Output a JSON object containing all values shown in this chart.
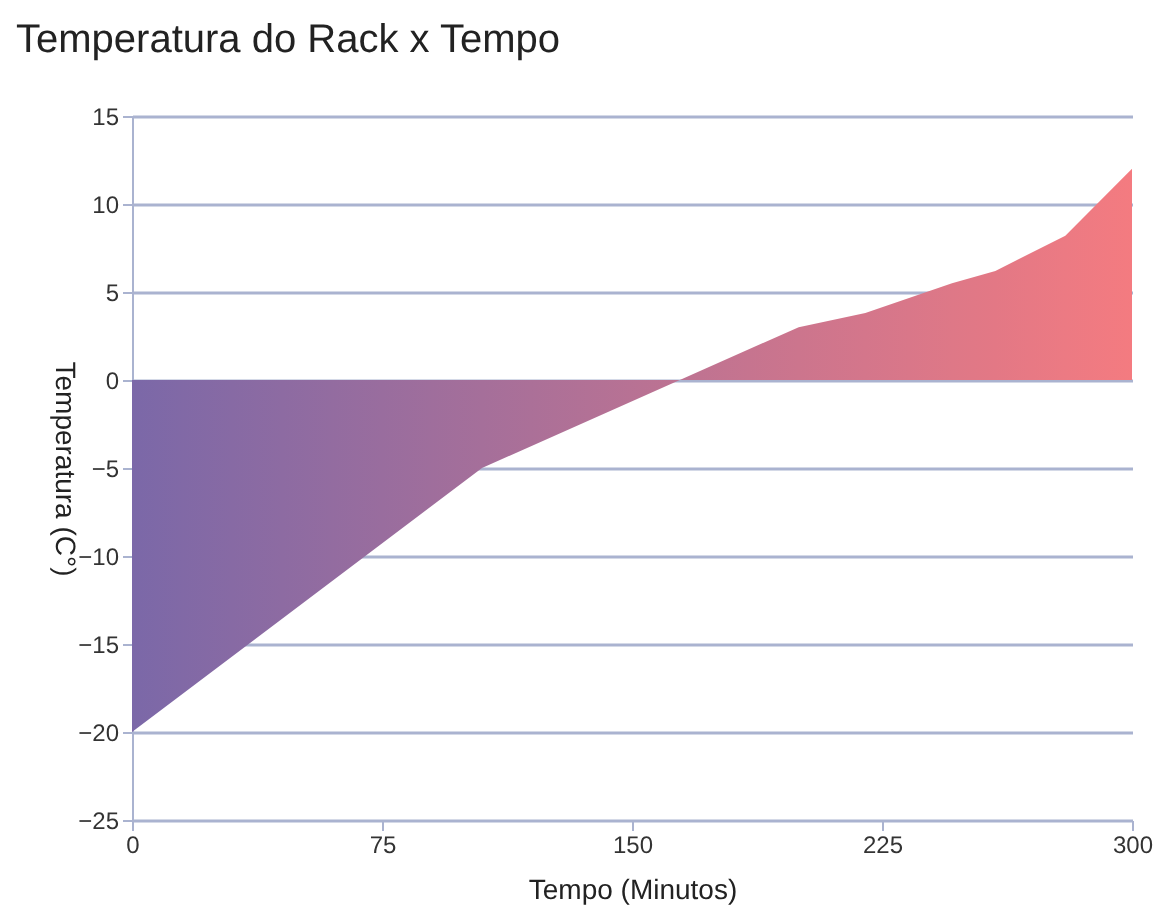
{
  "chart_data": {
    "type": "area",
    "title": "Temperatura do Rack x Tempo",
    "xlabel": "Tempo (Minutos)",
    "ylabel": "Temperatura (C°)",
    "x": [
      0,
      105,
      200,
      220,
      246,
      259,
      280,
      300
    ],
    "values": [
      -20,
      -5,
      3,
      3.8,
      5.5,
      6.2,
      8.2,
      12
    ],
    "colors": [
      "#7b68a8",
      "#a56f9a",
      "#cc758d",
      "#d4768b",
      "#de7887",
      "#e37885",
      "#ec7a83",
      "#f47b80"
    ],
    "xlim": [
      0,
      300
    ],
    "xticks": [
      0,
      75,
      150,
      225,
      300
    ],
    "ylim": [
      -25,
      15
    ],
    "yticks": [
      -25,
      -20,
      -15,
      -10,
      -5,
      0,
      5,
      10,
      15
    ],
    "grid": "y"
  }
}
